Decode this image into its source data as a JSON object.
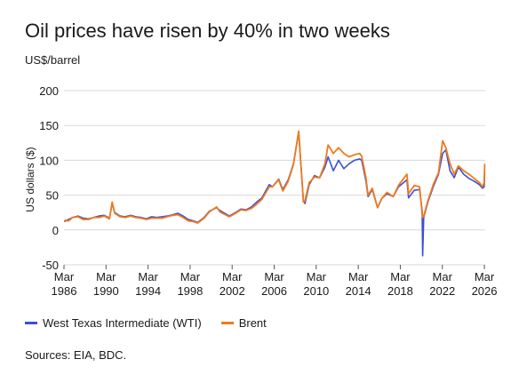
{
  "chart_data": {
    "type": "line",
    "title": "Oil prices have risen by 40% in two weeks",
    "subtitle": "US$/barrel",
    "ylabel": "US dollars ($)",
    "xlabel": "",
    "ylim": [
      -50,
      200
    ],
    "yticks": [
      -50,
      0,
      50,
      100,
      150,
      200
    ],
    "xlim": [
      1986.17,
      2026.25
    ],
    "xticks": [
      {
        "value": 1986.17,
        "month": "Mar",
        "year": "1986"
      },
      {
        "value": 1990.17,
        "month": "Mar",
        "year": "1990"
      },
      {
        "value": 1994.17,
        "month": "Mar",
        "year": "1994"
      },
      {
        "value": 1998.17,
        "month": "Mar",
        "year": "1998"
      },
      {
        "value": 2002.17,
        "month": "Mar",
        "year": "2002"
      },
      {
        "value": 2006.17,
        "month": "Mar",
        "year": "2006"
      },
      {
        "value": 2010.17,
        "month": "Mar",
        "year": "2010"
      },
      {
        "value": 2014.17,
        "month": "Mar",
        "year": "2014"
      },
      {
        "value": 2018.17,
        "month": "Mar",
        "year": "2018"
      },
      {
        "value": 2022.17,
        "month": "Mar",
        "year": "2022"
      },
      {
        "value": 2026.17,
        "month": "Mar",
        "year": "2026"
      }
    ],
    "grid": true,
    "legend_position": "bottom-left",
    "series": [
      {
        "name": "West Texas Intermediate (WTI)",
        "color": "#3b4fd8",
        "x": [
          1986.2,
          1986.6,
          1987.0,
          1987.5,
          1988.0,
          1988.5,
          1989.0,
          1989.5,
          1990.0,
          1990.5,
          1990.75,
          1991.0,
          1991.5,
          1992.0,
          1992.5,
          1993.0,
          1993.5,
          1994.0,
          1994.5,
          1995.0,
          1995.5,
          1996.0,
          1996.5,
          1997.0,
          1997.5,
          1998.0,
          1998.5,
          1998.9,
          1999.5,
          2000.0,
          2000.7,
          2001.0,
          2001.9,
          2002.5,
          2003.0,
          2003.5,
          2004.0,
          2004.5,
          2005.0,
          2005.7,
          2006.0,
          2006.6,
          2007.0,
          2007.5,
          2008.0,
          2008.5,
          2008.95,
          2009.1,
          2009.5,
          2010.0,
          2010.5,
          2011.0,
          2011.3,
          2011.8,
          2012.3,
          2012.8,
          2013.3,
          2013.8,
          2014.3,
          2014.5,
          2014.9,
          2015.1,
          2015.5,
          2016.0,
          2016.4,
          2016.9,
          2017.5,
          2018.0,
          2018.8,
          2018.95,
          2019.5,
          2020.0,
          2020.25,
          2020.3,
          2020.4,
          2020.8,
          2021.3,
          2021.8,
          2022.2,
          2022.5,
          2022.9,
          2023.3,
          2023.7,
          2024.2,
          2024.7,
          2025.2,
          2025.7,
          2026.0,
          2026.15,
          2026.2
        ],
        "values": [
          12,
          15,
          18,
          20,
          17,
          16,
          18,
          20,
          21,
          17,
          38,
          25,
          20,
          19,
          21,
          19,
          18,
          16,
          19,
          18,
          19,
          20,
          22,
          24,
          20,
          15,
          13,
          11,
          18,
          27,
          32,
          28,
          20,
          25,
          30,
          29,
          33,
          40,
          46,
          65,
          62,
          73,
          58,
          72,
          95,
          140,
          42,
          38,
          65,
          78,
          75,
          90,
          105,
          85,
          100,
          88,
          95,
          100,
          102,
          100,
          70,
          48,
          58,
          32,
          45,
          52,
          48,
          62,
          72,
          46,
          57,
          58,
          28,
          -37,
          18,
          40,
          62,
          80,
          110,
          115,
          85,
          75,
          90,
          80,
          74,
          70,
          65,
          60,
          62,
          82
        ]
      },
      {
        "name": "Brent",
        "color": "#f07a1c",
        "x": [
          1986.2,
          1986.6,
          1987.0,
          1987.5,
          1988.0,
          1988.5,
          1989.0,
          1989.5,
          1990.0,
          1990.5,
          1990.75,
          1991.0,
          1991.5,
          1992.0,
          1992.5,
          1993.0,
          1993.5,
          1994.0,
          1994.5,
          1995.0,
          1995.5,
          1996.0,
          1996.5,
          1997.0,
          1997.5,
          1998.0,
          1998.5,
          1998.9,
          1999.5,
          2000.0,
          2000.7,
          2001.0,
          2001.9,
          2002.5,
          2003.0,
          2003.5,
          2004.0,
          2004.5,
          2005.0,
          2005.7,
          2006.0,
          2006.6,
          2007.0,
          2007.5,
          2008.0,
          2008.5,
          2008.95,
          2009.1,
          2009.5,
          2010.0,
          2010.5,
          2011.0,
          2011.3,
          2011.8,
          2012.3,
          2012.8,
          2013.3,
          2013.8,
          2014.3,
          2014.5,
          2014.9,
          2015.1,
          2015.5,
          2016.0,
          2016.4,
          2016.9,
          2017.5,
          2018.0,
          2018.8,
          2018.95,
          2019.5,
          2020.0,
          2020.25,
          2020.3,
          2020.4,
          2020.8,
          2021.3,
          2021.8,
          2022.2,
          2022.5,
          2022.9,
          2023.3,
          2023.7,
          2024.2,
          2024.7,
          2025.2,
          2025.7,
          2026.0,
          2026.15,
          2026.2
        ],
        "values": [
          14,
          13,
          18,
          19,
          15,
          15,
          18,
          18,
          20,
          16,
          40,
          24,
          19,
          18,
          20,
          18,
          17,
          15,
          17,
          17,
          17,
          19,
          21,
          22,
          18,
          13,
          12,
          10,
          17,
          26,
          33,
          26,
          19,
          24,
          29,
          28,
          31,
          37,
          44,
          62,
          62,
          72,
          56,
          70,
          94,
          142,
          40,
          42,
          68,
          76,
          75,
          95,
          122,
          110,
          118,
          110,
          105,
          108,
          110,
          106,
          75,
          50,
          60,
          32,
          45,
          54,
          48,
          64,
          80,
          52,
          64,
          62,
          24,
          18,
          20,
          42,
          65,
          82,
          128,
          118,
          95,
          80,
          92,
          85,
          80,
          74,
          68,
          62,
          68,
          95
        ]
      }
    ]
  },
  "legend": {
    "items": [
      {
        "label": "West Texas Intermediate (WTI)",
        "color": "#3b4fd8"
      },
      {
        "label": "Brent",
        "color": "#f07a1c"
      }
    ]
  },
  "source": "Sources: EIA, BDC."
}
